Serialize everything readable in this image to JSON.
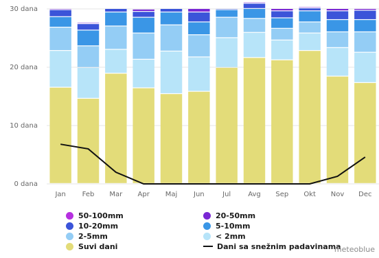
{
  "chart_data": {
    "type": "bar",
    "stacked": true,
    "title": "",
    "xlabel": "",
    "ylabel": "",
    "y_unit_suffix": " dana",
    "ylim": [
      0,
      30
    ],
    "y_ticks": [
      0,
      10,
      20,
      30
    ],
    "grid": true,
    "categories": [
      "Jan",
      "Feb",
      "Mar",
      "Apr",
      "Maj",
      "Jun",
      "Jul",
      "Avg",
      "Sep",
      "Okt",
      "Nov",
      "Dec"
    ],
    "series": [
      {
        "name": "Suvi dani",
        "color": "#e3dc79",
        "values": [
          16.5,
          14.6,
          18.9,
          16.4,
          15.4,
          15.8,
          19.9,
          21.6,
          21.2,
          22.8,
          18.4,
          17.3
        ]
      },
      {
        "name": "< 2mm",
        "color": "#b7e4f9",
        "values": [
          6.3,
          5.3,
          4.1,
          4.9,
          7.3,
          5.9,
          5.1,
          4.3,
          3.4,
          3.0,
          4.9,
          5.2
        ]
      },
      {
        "name": "2-5mm",
        "color": "#94cdf5",
        "values": [
          4.0,
          3.7,
          4.0,
          4.5,
          4.5,
          3.8,
          3.5,
          2.4,
          2.0,
          1.9,
          2.7,
          3.5
        ]
      },
      {
        "name": "5-10mm",
        "color": "#3a96e6",
        "values": [
          1.8,
          2.7,
          2.4,
          2.7,
          2.2,
          2.2,
          1.3,
          1.7,
          1.8,
          1.9,
          2.1,
          2.1
        ]
      },
      {
        "name": "10-20mm",
        "color": "#3b54d9",
        "values": [
          1.2,
          1.1,
          0.6,
          1.0,
          0.6,
          1.7,
          0.2,
          0.9,
          1.2,
          0.5,
          1.5,
          1.6
        ]
      },
      {
        "name": "20-50mm",
        "color": "#7a27d4",
        "values": [
          0.2,
          0.2,
          0.0,
          0.4,
          0.0,
          0.6,
          0.0,
          0.2,
          0.4,
          0.2,
          0.4,
          0.3
        ]
      },
      {
        "name": "50-100mm",
        "color": "#b630e0",
        "values": [
          0.0,
          0.0,
          0.0,
          0.1,
          0.0,
          0.0,
          0.0,
          0.0,
          0.0,
          0.0,
          0.0,
          0.0
        ]
      }
    ],
    "line_series": {
      "name": "Dani sa snežnim padavinama",
      "color": "#111111",
      "values": [
        6.8,
        6.0,
        2.0,
        0.0,
        0.0,
        0.0,
        0.0,
        0.0,
        0.0,
        0.0,
        1.3,
        4.6
      ]
    },
    "legend": {
      "position": "bottom",
      "order": [
        "50-100mm",
        "20-50mm",
        "10-20mm",
        "5-10mm",
        "2-5mm",
        "< 2mm",
        "Suvi dani",
        "Dani sa snežnim padavinama"
      ]
    }
  },
  "legend_labels": {
    "mm_50_100": "50-100mm",
    "mm_20_50": "20-50mm",
    "mm_10_20": "10-20mm",
    "mm_5_10": "5-10mm",
    "mm_2_5": "2-5mm",
    "mm_lt2": "< 2mm",
    "dry_days": "Suvi dani",
    "snow_days": "Dani sa snežnim padavinama"
  },
  "credit": "meteoblue"
}
